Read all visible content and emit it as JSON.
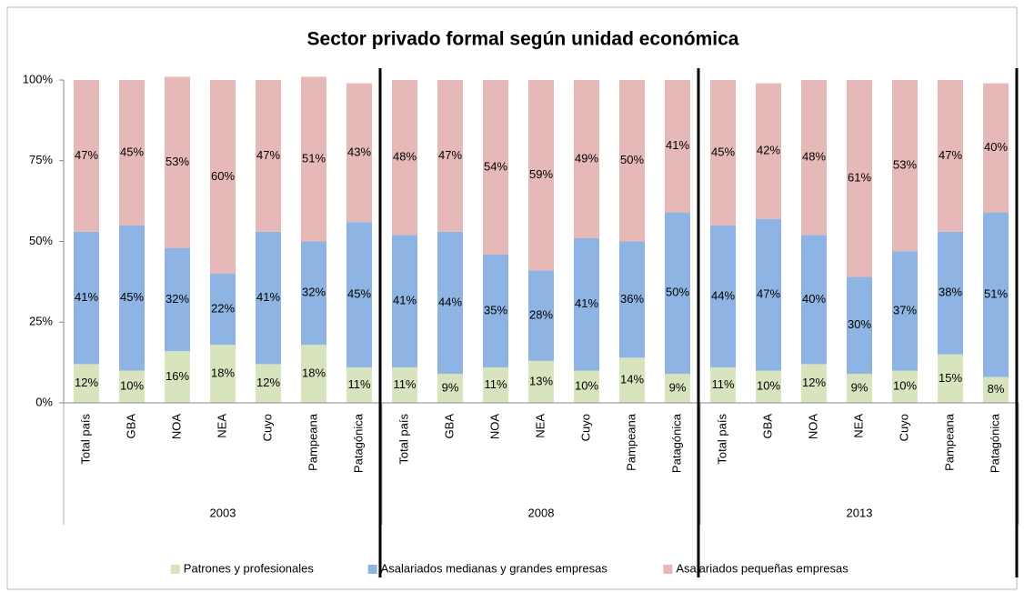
{
  "chart_data": {
    "type": "stacked_bar",
    "title": "Sector privado formal según unidad económica",
    "groups": [
      "2003",
      "2008",
      "2013"
    ],
    "categories": [
      "Total país",
      "GBA",
      "NOA",
      "NEA",
      "Cuyo",
      "Pampeana",
      "Patagónica",
      "Total país",
      "GBA",
      "NOA",
      "NEA",
      "Cuyo",
      "Pampeana",
      "Patagónica",
      "Total país",
      "GBA",
      "NOA",
      "NEA",
      "Cuyo",
      "Pampeana",
      "Patagónica"
    ],
    "ylim": [
      0,
      100
    ],
    "yticks": [
      {
        "value": 0,
        "label": "0%"
      },
      {
        "value": 25,
        "label": "25%"
      },
      {
        "value": 50,
        "label": "50%"
      },
      {
        "value": 75,
        "label": "75%"
      },
      {
        "value": 100,
        "label": "100%"
      }
    ],
    "legend": "bottom",
    "series": [
      {
        "name": "Patrones y profesionales",
        "color": "#d7e4bd",
        "values": [
          12,
          10,
          16,
          18,
          12,
          18,
          11,
          11,
          9,
          11,
          13,
          10,
          14,
          9,
          11,
          10,
          12,
          9,
          10,
          15,
          8
        ],
        "value_labels": [
          "12%",
          "10%",
          "16%",
          "18%",
          "12%",
          "18%",
          "11%",
          "11%",
          "9%",
          "11%",
          "13%",
          "10%",
          "14%",
          "9%",
          "11%",
          "10%",
          "12%",
          "9%",
          "10%",
          "15%",
          "8%"
        ]
      },
      {
        "name": "Asalariados medianas y grandes empresas",
        "color": "#8eb4e3",
        "values": [
          41,
          45,
          32,
          22,
          41,
          32,
          45,
          41,
          44,
          35,
          28,
          41,
          36,
          50,
          44,
          47,
          40,
          30,
          37,
          38,
          51
        ],
        "value_labels": [
          "41%",
          "45%",
          "32%",
          "22%",
          "41%",
          "32%",
          "45%",
          "41%",
          "44%",
          "35%",
          "28%",
          "41%",
          "36%",
          "50%",
          "44%",
          "47%",
          "40%",
          "30%",
          "37%",
          "38%",
          "51%"
        ]
      },
      {
        "name": "Asalariados pequeñas empresas",
        "color": "#e6b9b8",
        "values": [
          47,
          45,
          53,
          60,
          47,
          51,
          43,
          48,
          47,
          54,
          59,
          49,
          50,
          41,
          45,
          42,
          48,
          61,
          53,
          47,
          40
        ],
        "value_labels": [
          "47%",
          "45%",
          "53%",
          "60%",
          "47%",
          "51%",
          "43%",
          "48%",
          "47%",
          "54%",
          "59%",
          "49%",
          "50%",
          "41%",
          "45%",
          "42%",
          "48%",
          "61%",
          "53%",
          "47%",
          "40%"
        ]
      }
    ]
  }
}
